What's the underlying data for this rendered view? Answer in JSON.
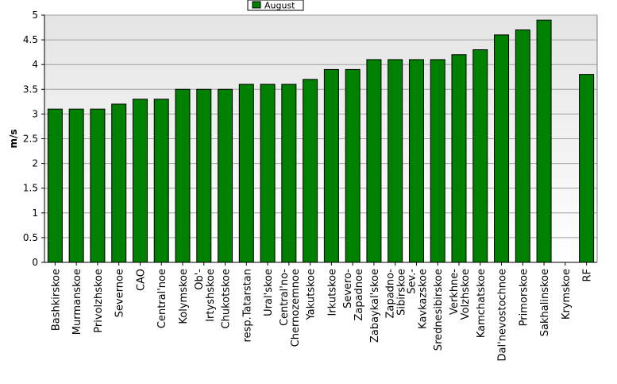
{
  "chart_data": {
    "type": "bar",
    "title": "",
    "xlabel": "",
    "ylabel": "m/s",
    "ylim": [
      0,
      5
    ],
    "yticks": [
      0,
      0.5,
      1,
      1.5,
      2,
      2.5,
      3,
      3.5,
      4,
      4.5,
      5
    ],
    "grid": true,
    "legend_position": "top-center",
    "categories": [
      "Bashkirskoe",
      "Murmanskoe",
      "Privolzhskoe",
      "Severnoe",
      "CAO",
      "Central'noe",
      "Kolymskoe",
      "Ob'-Irtyshskoe",
      "Chukotskoe",
      "resp.Tatarstan",
      "Ural'skoe",
      "Central'no-Chernozemnoe",
      "Yakutskoe",
      "Irkutskoe",
      "Severo-Zapadnoe",
      "Zabaykal'skoe",
      "Zapadno-Sibirskoe",
      "Sev.-Kavkazskoe",
      "Srednesibirskoe",
      "Verkhne-Volzhskoe",
      "Kamchatskoe",
      "Dal'nevostochnoe",
      "Primorskoe",
      "Sakhalinskoe",
      "Krymskoe",
      "RF"
    ],
    "series": [
      {
        "name": "August",
        "color": "#008000",
        "values": [
          3.1,
          3.1,
          3.1,
          3.2,
          3.3,
          3.3,
          3.5,
          3.5,
          3.5,
          3.6,
          3.6,
          3.6,
          3.7,
          3.9,
          3.9,
          4.1,
          4.1,
          4.1,
          4.1,
          4.2,
          4.3,
          4.6,
          4.7,
          4.9,
          null,
          3.8
        ]
      }
    ],
    "tick_label_lines": [
      [
        "Bashkirskoe"
      ],
      [
        "Murmanskoe"
      ],
      [
        "Privolzhskoe"
      ],
      [
        "Severnoe"
      ],
      [
        "CAO"
      ],
      [
        "Central'noe"
      ],
      [
        "Kolymskoe"
      ],
      [
        "Ob'-",
        "Irtyshskoe"
      ],
      [
        "Chukotskoe"
      ],
      [
        "resp.Tatarstan"
      ],
      [
        "Ural'skoe"
      ],
      [
        "Central'no-",
        "Chernozemnoe"
      ],
      [
        "Yakutskoe"
      ],
      [
        "Irkutskoe"
      ],
      [
        "Severo-",
        "Zapadnoe"
      ],
      [
        "Zabaykal'skoe"
      ],
      [
        "Zapadno-",
        "Sibirskoe"
      ],
      [
        "Sev.-",
        "Kavkazskoe"
      ],
      [
        "Srednesibirskoe"
      ],
      [
        "Verkhne-",
        "Volzhskoe"
      ],
      [
        "Kamchatskoe"
      ],
      [
        "Dal'nevostochnoe"
      ],
      [
        "Primorskoe"
      ],
      [
        "Sakhalinskoe"
      ],
      [
        "Krymskoe"
      ],
      [
        "RF"
      ]
    ]
  }
}
